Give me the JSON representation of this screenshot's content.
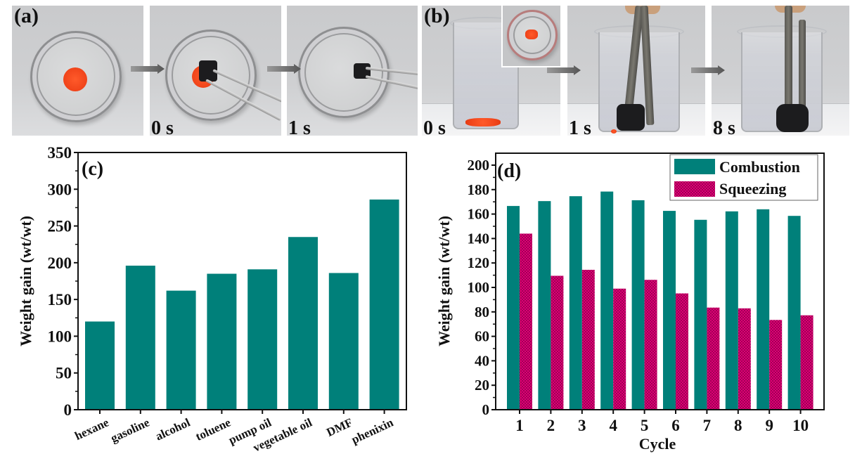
{
  "figure": {
    "panel_a": {
      "label": "(a)",
      "frames": [
        {
          "time_label": ""
        },
        {
          "time_label": "0 s"
        },
        {
          "time_label": "1 s"
        }
      ]
    },
    "panel_b": {
      "label": "(b)",
      "frames": [
        {
          "time_label": "0 s"
        },
        {
          "time_label": "1 s"
        },
        {
          "time_label": "8 s"
        }
      ]
    }
  },
  "colors": {
    "combustion": "#00807a",
    "squeezing": "#e6007a",
    "axis": "#111111"
  },
  "chart_data": [
    {
      "panel_label": "(c)",
      "type": "bar",
      "title": "",
      "xlabel": "",
      "ylabel": "Weight gain (wt/wt)",
      "categories": [
        "hexane",
        "gasoline",
        "alcohol",
        "toluene",
        "pump oil",
        "vegetable oil",
        "DMF",
        "phenixin"
      ],
      "values": [
        120,
        196,
        162,
        185,
        191,
        235,
        186,
        286
      ],
      "ylim": [
        0,
        350
      ],
      "yticks": [
        0,
        50,
        100,
        150,
        200,
        250,
        300,
        350
      ],
      "grid": false,
      "legend": null
    },
    {
      "panel_label": "(d)",
      "type": "bar",
      "title": "",
      "xlabel": "Cycle",
      "ylabel": "Weight gain (wt/wt)",
      "categories": [
        "1",
        "2",
        "3",
        "4",
        "5",
        "6",
        "7",
        "8",
        "9",
        "10"
      ],
      "series": [
        {
          "name": "Combustion",
          "values": [
            166.6,
            170.6,
            174.6,
            178.4,
            171.3,
            162.6,
            155.3,
            162.2,
            163.9,
            158.5
          ]
        },
        {
          "name": "Squeezing",
          "values": [
            144.0,
            109.5,
            114.4,
            99.0,
            106.2,
            95.1,
            83.5,
            82.9,
            73.4,
            77.2
          ]
        }
      ],
      "ylim": [
        0,
        200
      ],
      "yticks": [
        0,
        20,
        40,
        60,
        80,
        100,
        120,
        140,
        160,
        180,
        200
      ],
      "grid": false,
      "legend": {
        "position": "top-right",
        "entries": [
          "Combustion",
          "Squeezing"
        ]
      }
    }
  ]
}
